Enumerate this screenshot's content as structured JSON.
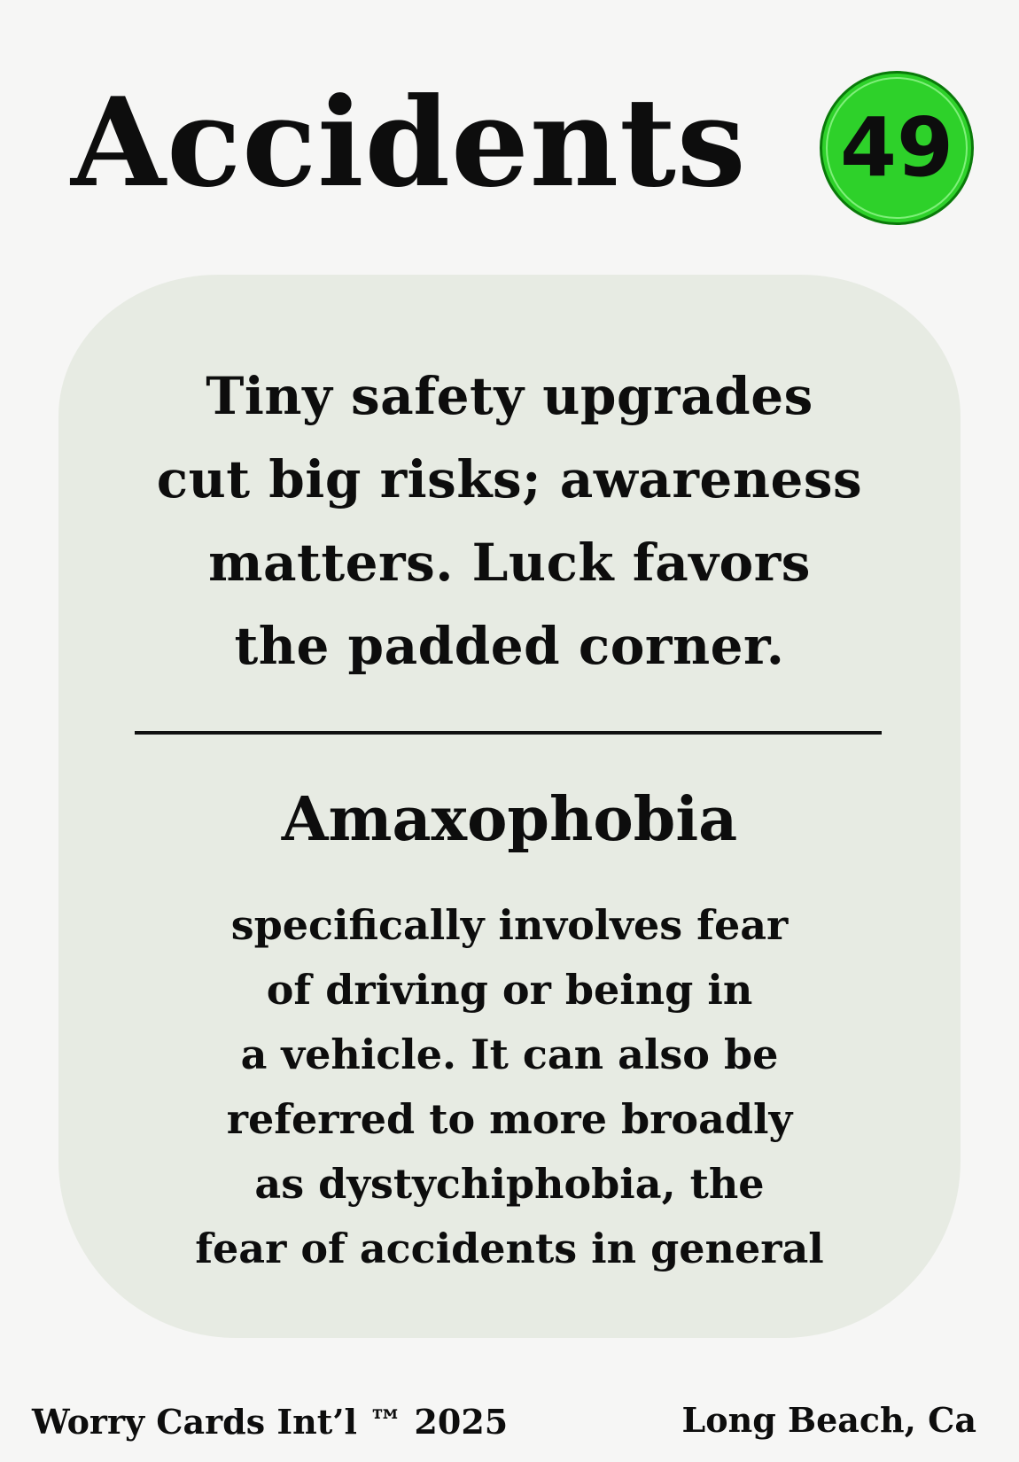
{
  "card": {
    "title": "Accidents",
    "number": "49",
    "badge_color": "#2ed12a",
    "panel_color": "#e7ebe3",
    "tagline_lines": [
      "Tiny safety upgrades",
      "cut big risks; awareness",
      "matters. Luck favors",
      "the padded corner."
    ],
    "term": "Amaxophobia",
    "definition_lines": [
      "specifically involves fear",
      "of driving or being in",
      "a vehicle. It can also be",
      "referred to more broadly",
      "as dystychiphobia, the",
      "fear of accidents in general"
    ]
  },
  "footer": {
    "left": "Worry Cards Int’l ™ 2025",
    "right": "Long Beach, Ca"
  }
}
